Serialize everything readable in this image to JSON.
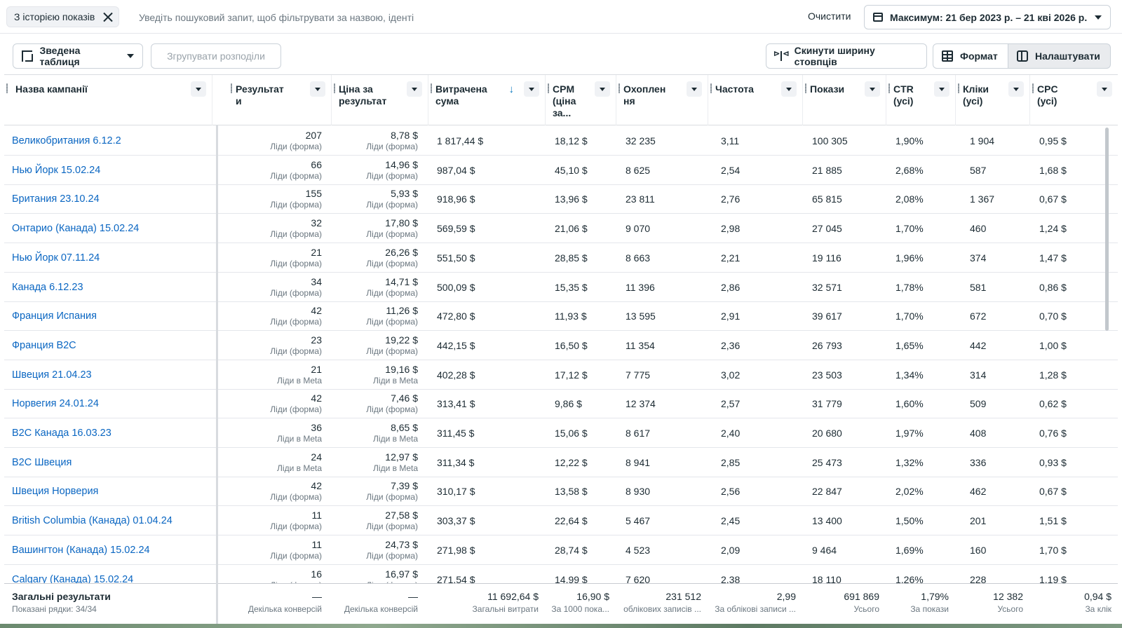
{
  "filter": {
    "chip_label": "З історією показів",
    "search_placeholder": "Уведіть пошуковий запит, щоб фільтрувати за назвою, іденті",
    "clear_label": "Очистити",
    "date_range": "Максимум: 21 бер 2023 р. – 21 кві 2026 р."
  },
  "toolbar": {
    "pivot_label": "Зведена таблиця",
    "group_label": "Згрупувати розподіли",
    "reset_width_label": "Скинути ширину стовпців",
    "format_label": "Формат",
    "settings_label": "Налаштувати"
  },
  "columns": [
    "Назва кампанії",
    "Результати",
    "Ціна за результат",
    "Витрачена сума",
    "CPM (ціна за...",
    "Охоплення",
    "Частота",
    "Покази",
    "CTR (усі)",
    "Кліки (усі)",
    "CPC (усі)"
  ],
  "rows": [
    {
      "name": "Великобритания 6.12.2",
      "results": "207",
      "results_type": "Ліди (форма)",
      "cpr": "8,78 $",
      "cpr_type": "Ліди (форма)",
      "spent": "1 817,44 $",
      "cpm": "18,12 $",
      "reach": "32 235",
      "freq": "3,11",
      "impr": "100 305",
      "ctr": "1,90%",
      "clicks": "1 904",
      "cpc": "0,95 $"
    },
    {
      "name": "Нью Йорк 15.02.24",
      "results": "66",
      "results_type": "Ліди (форма)",
      "cpr": "14,96 $",
      "cpr_type": "Ліди (форма)",
      "spent": "987,04 $",
      "cpm": "45,10 $",
      "reach": "8 625",
      "freq": "2,54",
      "impr": "21 885",
      "ctr": "2,68%",
      "clicks": "587",
      "cpc": "1,68 $"
    },
    {
      "name": "Британия 23.10.24",
      "results": "155",
      "results_type": "Ліди (форма)",
      "cpr": "5,93 $",
      "cpr_type": "Ліди (форма)",
      "spent": "918,96 $",
      "cpm": "13,96 $",
      "reach": "23 811",
      "freq": "2,76",
      "impr": "65 815",
      "ctr": "2,08%",
      "clicks": "1 367",
      "cpc": "0,67 $"
    },
    {
      "name": "Онтарио (Канада) 15.02.24",
      "results": "32",
      "results_type": "Ліди (форма)",
      "cpr": "17,80 $",
      "cpr_type": "Ліди (форма)",
      "spent": "569,59 $",
      "cpm": "21,06 $",
      "reach": "9 070",
      "freq": "2,98",
      "impr": "27 045",
      "ctr": "1,70%",
      "clicks": "460",
      "cpc": "1,24 $"
    },
    {
      "name": "Нью Йорк 07.11.24",
      "results": "21",
      "results_type": "Ліди (форма)",
      "cpr": "26,26 $",
      "cpr_type": "Ліди (форма)",
      "spent": "551,50 $",
      "cpm": "28,85 $",
      "reach": "8 663",
      "freq": "2,21",
      "impr": "19 116",
      "ctr": "1,96%",
      "clicks": "374",
      "cpc": "1,47 $"
    },
    {
      "name": "Канада 6.12.23",
      "results": "34",
      "results_type": "Ліди (форма)",
      "cpr": "14,71 $",
      "cpr_type": "Ліди (форма)",
      "spent": "500,09 $",
      "cpm": "15,35 $",
      "reach": "11 396",
      "freq": "2,86",
      "impr": "32 571",
      "ctr": "1,78%",
      "clicks": "581",
      "cpc": "0,86 $"
    },
    {
      "name": "Франция Испания",
      "results": "42",
      "results_type": "Ліди (форма)",
      "cpr": "11,26 $",
      "cpr_type": "Ліди (форма)",
      "spent": "472,80 $",
      "cpm": "11,93 $",
      "reach": "13 595",
      "freq": "2,91",
      "impr": "39 617",
      "ctr": "1,70%",
      "clicks": "672",
      "cpc": "0,70 $"
    },
    {
      "name": "Франция B2C",
      "results": "23",
      "results_type": "Ліди (форма)",
      "cpr": "19,22 $",
      "cpr_type": "Ліди (форма)",
      "spent": "442,15 $",
      "cpm": "16,50 $",
      "reach": "11 354",
      "freq": "2,36",
      "impr": "26 793",
      "ctr": "1,65%",
      "clicks": "442",
      "cpc": "1,00 $"
    },
    {
      "name": "Швеция 21.04.23",
      "results": "21",
      "results_type": "Ліди в Meta",
      "cpr": "19,16 $",
      "cpr_type": "Ліди в Meta",
      "spent": "402,28 $",
      "cpm": "17,12 $",
      "reach": "7 775",
      "freq": "3,02",
      "impr": "23 503",
      "ctr": "1,34%",
      "clicks": "314",
      "cpc": "1,28 $"
    },
    {
      "name": "Норвегия 24.01.24",
      "results": "42",
      "results_type": "Ліди (форма)",
      "cpr": "7,46 $",
      "cpr_type": "Ліди (форма)",
      "spent": "313,41 $",
      "cpm": "9,86 $",
      "reach": "12 374",
      "freq": "2,57",
      "impr": "31 779",
      "ctr": "1,60%",
      "clicks": "509",
      "cpc": "0,62 $"
    },
    {
      "name": "B2C Канада 16.03.23",
      "results": "36",
      "results_type": "Ліди в Meta",
      "cpr": "8,65 $",
      "cpr_type": "Ліди в Meta",
      "spent": "311,45 $",
      "cpm": "15,06 $",
      "reach": "8 617",
      "freq": "2,40",
      "impr": "20 680",
      "ctr": "1,97%",
      "clicks": "408",
      "cpc": "0,76 $"
    },
    {
      "name": "B2C Швеция",
      "results": "24",
      "results_type": "Ліди в Meta",
      "cpr": "12,97 $",
      "cpr_type": "Ліди в Meta",
      "spent": "311,34 $",
      "cpm": "12,22 $",
      "reach": "8 941",
      "freq": "2,85",
      "impr": "25 473",
      "ctr": "1,32%",
      "clicks": "336",
      "cpc": "0,93 $"
    },
    {
      "name": "Швеция Норверия",
      "results": "42",
      "results_type": "Ліди (форма)",
      "cpr": "7,39 $",
      "cpr_type": "Ліди (форма)",
      "spent": "310,17 $",
      "cpm": "13,58 $",
      "reach": "8 930",
      "freq": "2,56",
      "impr": "22 847",
      "ctr": "2,02%",
      "clicks": "462",
      "cpc": "0,67 $"
    },
    {
      "name": "British Columbia (Канада) 01.04.24",
      "results": "11",
      "results_type": "Ліди (форма)",
      "cpr": "27,58 $",
      "cpr_type": "Ліди (форма)",
      "spent": "303,37 $",
      "cpm": "22,64 $",
      "reach": "5 467",
      "freq": "2,45",
      "impr": "13 400",
      "ctr": "1,50%",
      "clicks": "201",
      "cpc": "1,51 $"
    },
    {
      "name": "Вашингтон (Канада) 15.02.24",
      "results": "11",
      "results_type": "Ліди (форма)",
      "cpr": "24,73 $",
      "cpr_type": "Ліди (форма)",
      "spent": "271,98 $",
      "cpm": "28,74 $",
      "reach": "4 523",
      "freq": "2,09",
      "impr": "9 464",
      "ctr": "1,69%",
      "clicks": "160",
      "cpc": "1,70 $"
    },
    {
      "name": "Calgary (Канада) 15.02.24",
      "results": "16",
      "results_type": "Ліди (форма)",
      "cpr": "16,97 $",
      "cpr_type": "Ліди (форма)",
      "spent": "271,54 $",
      "cpm": "14,99 $",
      "reach": "7 620",
      "freq": "2,38",
      "impr": "18 110",
      "ctr": "1,26%",
      "clicks": "228",
      "cpc": "1,19 $"
    }
  ],
  "totals": {
    "title": "Загальні результати",
    "subtitle": "Показані рядки: 34/34",
    "results": "—",
    "results_sub": "Декілька конверсій",
    "cpr": "—",
    "cpr_sub": "Декілька конверсій",
    "spent": "11 692,64 $",
    "spent_sub": "Загальні витрати",
    "cpm": "16,90 $",
    "cpm_sub": "За 1000 пока...",
    "reach": "231 512",
    "reach_sub": "облікових записів ...",
    "freq": "2,99",
    "freq_sub": "За облікові записи ...",
    "impr": "691 869",
    "impr_sub": "Усього",
    "ctr": "1,79%",
    "ctr_sub": "За покази",
    "clicks": "12 382",
    "clicks_sub": "Усього",
    "cpc": "0,94 $",
    "cpc_sub": "За клік"
  },
  "colors": {
    "link": "#0a66c2",
    "sort_arrow": "#0a78be",
    "text": "#1c2b33",
    "muted": "#6b7780"
  }
}
